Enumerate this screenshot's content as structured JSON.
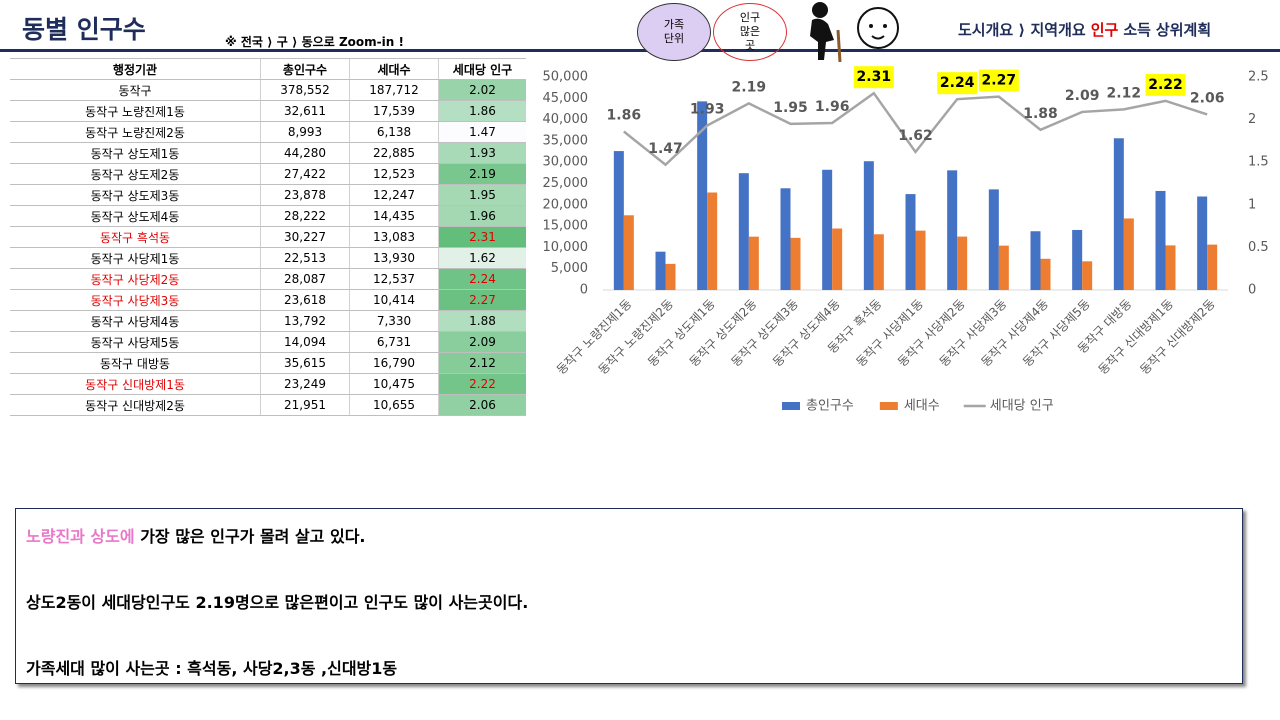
{
  "header": {
    "title": "동별 인구수",
    "subtitle": "※ 전국 ⟩ 구 ⟩ 동으로 Zoom-in !",
    "bubbles": [
      [
        "가족",
        "단위"
      ],
      [
        "인구",
        "많은",
        "곳"
      ]
    ],
    "nav": [
      "도시개요 ⟩ 지역개요",
      "인구",
      "소득",
      "상위계획"
    ]
  },
  "table": {
    "columns": [
      "행정기관",
      "총인구수",
      "세대수",
      "세대당 인구"
    ],
    "rows": [
      [
        "동작구",
        "378,552",
        "187,712",
        "2.02"
      ],
      [
        "동작구 노량진제1동",
        "32,611",
        "17,539",
        "1.86"
      ],
      [
        "동작구 노량진제2동",
        "8,993",
        "6,138",
        "1.47"
      ],
      [
        "동작구 상도제1동",
        "44,280",
        "22,885",
        "1.93"
      ],
      [
        "동작구 상도제2동",
        "27,422",
        "12,523",
        "2.19"
      ],
      [
        "동작구 상도제3동",
        "23,878",
        "12,247",
        "1.95"
      ],
      [
        "동작구 상도제4동",
        "28,222",
        "14,435",
        "1.96"
      ],
      [
        "동작구 흑석동",
        "30,227",
        "13,083",
        "2.31"
      ],
      [
        "동작구 사당제1동",
        "22,513",
        "13,930",
        "1.62"
      ],
      [
        "동작구 사당제2동",
        "28,087",
        "12,537",
        "2.24"
      ],
      [
        "동작구 사당제3동",
        "23,618",
        "10,414",
        "2.27"
      ],
      [
        "동작구 사당제4동",
        "13,792",
        "7,330",
        "1.88"
      ],
      [
        "동작구 사당제5동",
        "14,094",
        "6,731",
        "2.09"
      ],
      [
        "동작구 대방동",
        "35,615",
        "16,790",
        "2.12"
      ],
      [
        "동작구 신대방제1동",
        "23,249",
        "10,475",
        "2.22"
      ],
      [
        "동작구 신대방제2동",
        "21,951",
        "10,655",
        "2.06"
      ]
    ],
    "row_text_colors": [
      "#000000",
      "#000000",
      "#000000",
      "#000000",
      "#000000",
      "#000000",
      "#000000",
      "#e00000",
      "#000000",
      "#e00000",
      "#e00000",
      "#000000",
      "#000000",
      "#000000",
      "#e00000",
      "#000000"
    ]
  },
  "chart_data": {
    "type": "bar",
    "categories": [
      "동작구 노량진제1동",
      "동작구 노량진제2동",
      "동작구 상도제1동",
      "동작구 상도제2동",
      "동작구 상도제3동",
      "동작구 상도제4동",
      "동작구 흑석동",
      "동작구 사당제1동",
      "동작구 사당제2동",
      "동작구 사당제3동",
      "동작구 사당제4동",
      "동작구 사당제5동",
      "동작구 대방동",
      "동작구 신대방제1동",
      "동작구 신대방제2동"
    ],
    "series": [
      {
        "name": "총인구수",
        "type": "bar",
        "color": "#4472c4",
        "values": [
          32611,
          8993,
          44280,
          27422,
          23878,
          28222,
          30227,
          22513,
          28087,
          23618,
          13792,
          14094,
          35615,
          23249,
          21951
        ]
      },
      {
        "name": "세대수",
        "type": "bar",
        "color": "#ed7d31",
        "values": [
          17539,
          6138,
          22885,
          12523,
          12247,
          14435,
          13083,
          13930,
          12537,
          10414,
          7330,
          6731,
          16790,
          10475,
          10655
        ]
      },
      {
        "name": "세대당 인구",
        "type": "line",
        "axis": "y2",
        "color": "#a5a5a5",
        "values": [
          1.86,
          1.47,
          1.93,
          2.19,
          1.95,
          1.96,
          2.31,
          1.62,
          2.24,
          2.27,
          1.88,
          2.09,
          2.12,
          2.22,
          2.06
        ],
        "label_backgrounds": [
          null,
          null,
          null,
          null,
          null,
          null,
          "#ffff00",
          null,
          "#ffff00",
          "#ffff00",
          null,
          null,
          null,
          "#ffff00",
          null
        ]
      }
    ],
    "ylim": [
      0,
      50000
    ],
    "yticks": [
      0,
      {
        "value": 5000,
        "label": "5,000"
      },
      {
        "value": 10000,
        "label": "10,000"
      },
      {
        "value": 15000,
        "label": "15,000"
      },
      {
        "value": 20000,
        "label": "20,000"
      },
      {
        "value": 25000,
        "label": "25,000"
      },
      {
        "value": 30000,
        "label": "30,000"
      },
      {
        "value": 35000,
        "label": "35,000"
      },
      {
        "value": 40000,
        "label": "40,000"
      },
      {
        "value": 45000,
        "label": "45,000"
      },
      {
        "value": 50000,
        "label": "50,000"
      }
    ],
    "y2lim": [
      0,
      2.5
    ],
    "y2ticks": [
      0,
      0.5,
      1,
      1.5,
      2,
      2.5
    ],
    "legend": "bottom"
  },
  "notes": {
    "highlight": "노량진과 상도에",
    "lines": [
      "가장 많은 인구가 몰려 살고 있다.",
      "상도2동이 세대당인구도 2.19명으로 많은편이고 인구도 많이 사는곳이다.",
      "가족세대 많이 사는곳 : 흑석동, 사당2,3동 ,신대방1동"
    ]
  }
}
